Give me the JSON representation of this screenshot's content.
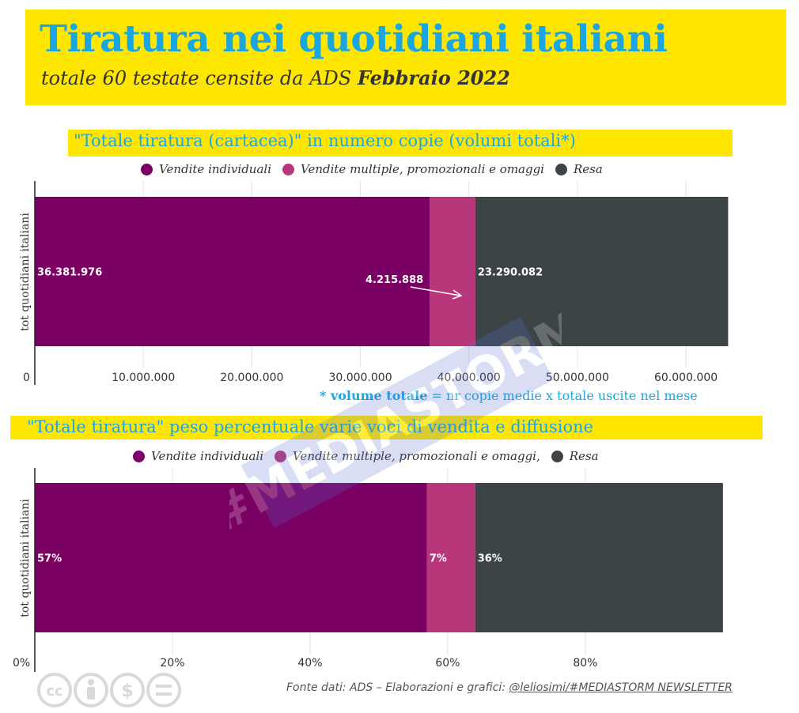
{
  "header": {
    "title": "Tiratura nei quotidiani italiani",
    "subtitle_prefix": "totale 60 testate censite da ADS ",
    "subtitle_bold": "Febbraio 2022"
  },
  "colors": {
    "header_bg": "#ffe600",
    "title": "#1aa6e0",
    "individual": "#7b0063",
    "multiple": "#b8377b",
    "resa": "#3c4446"
  },
  "legend1": [
    {
      "label": "Vendite individuali",
      "color": "#7b0063"
    },
    {
      "label": "Vendite multiple, promozionali e omaggi",
      "color": "#b8377b"
    },
    {
      "label": "Resa",
      "color": "#3c4446"
    }
  ],
  "legend2": [
    {
      "label": "Vendite individuali",
      "color": "#7b0063"
    },
    {
      "label": "Vendite multiple, promozionali e omaggi,",
      "color": "#b8377b"
    },
    {
      "label": "Resa",
      "color": "#3c4446"
    }
  ],
  "note": {
    "bold": "* volume totale",
    "rest": " = nr copie medie x totale uscite nel mese"
  },
  "footer": {
    "prefix": "Fonte dati: ADS – Elaborazioni e grafici: ",
    "handle": "@leliosimi/#MEDIASTORM NEWSLETTER"
  },
  "watermark": {
    "icon": "mediastorm-logo",
    "text": "#MEDIASTORM"
  },
  "license_icons": [
    "cc-icon",
    "by-icon",
    "nc-icon",
    "nd-icon"
  ],
  "chart_data": [
    {
      "type": "bar",
      "orientation": "horizontal",
      "stacked": true,
      "title": "\"Totale tiratura (cartacea)\" in numero copie (volumi totali*)",
      "ylabel": "tot quotidiani italiani",
      "categories": [
        "tot quotidiani italiani"
      ],
      "series": [
        {
          "name": "Vendite individuali",
          "values": [
            36381976
          ],
          "label": "36.381.976"
        },
        {
          "name": "Vendite multiple, promozionali e omaggi",
          "values": [
            4215888
          ],
          "label": "4.215.888"
        },
        {
          "name": "Resa",
          "values": [
            23290082
          ],
          "label": "23.290.082"
        }
      ],
      "xlim": [
        0,
        65000000
      ],
      "xticks": [
        0,
        10000000,
        20000000,
        30000000,
        40000000,
        50000000,
        60000000
      ],
      "xtick_labels": [
        "0",
        "10.000.000",
        "20.000.000",
        "30.000.000",
        "40.000.000",
        "50.000.000",
        "60.000.000"
      ],
      "grid": true,
      "legend": "top"
    },
    {
      "type": "bar",
      "orientation": "horizontal",
      "stacked": true,
      "title": "\"Totale tiratura\" peso percentuale varie voci di vendita e diffusione",
      "ylabel": "tot quotidiani italiani",
      "categories": [
        "tot quotidiani italiani"
      ],
      "series": [
        {
          "name": "Vendite individuali",
          "values": [
            57
          ],
          "label": "57%"
        },
        {
          "name": "Vendite multiple, promozionali e omaggi,",
          "values": [
            7
          ],
          "label": "7%"
        },
        {
          "name": "Resa",
          "values": [
            36
          ],
          "label": "36%"
        }
      ],
      "xlim": [
        0,
        100
      ],
      "xticks": [
        0,
        20,
        40,
        60,
        80
      ],
      "xtick_labels": [
        "0%",
        "20%",
        "40%",
        "60%",
        "80%"
      ],
      "grid": true,
      "legend": "top"
    }
  ]
}
